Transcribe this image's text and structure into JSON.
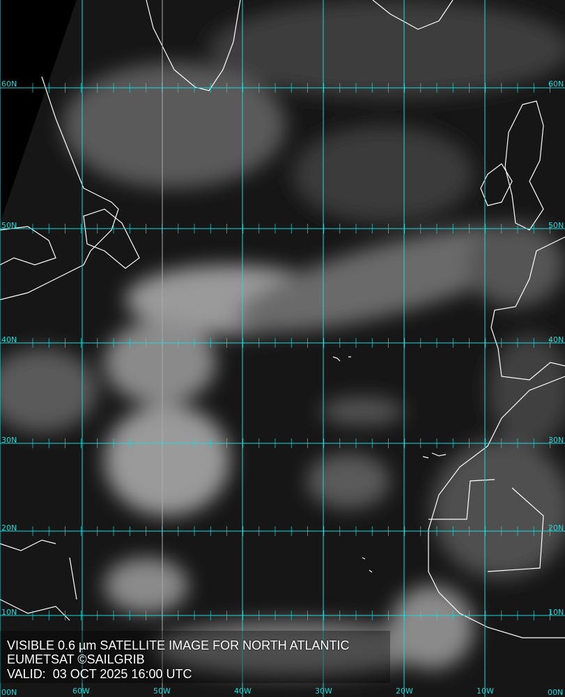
{
  "map": {
    "caption_lines": [
      "VISIBLE 0.6 µm SATELLITE IMAGE FOR NORTH ATLANTIC",
      "EUMETSAT ©SAILGRIB",
      "VALID:  03 OCT 2025 16:00 UTC"
    ],
    "latitude_labels": [
      "60N",
      "50N",
      "40N",
      "30N",
      "20N",
      "10N",
      "00N"
    ],
    "longitude_labels": [
      "60W",
      "50W",
      "40W",
      "30W",
      "20W",
      "10W",
      "00N"
    ],
    "colors": {
      "grid": "#1fd8d8",
      "coastline": "#ffffff",
      "background": "#161616"
    }
  }
}
